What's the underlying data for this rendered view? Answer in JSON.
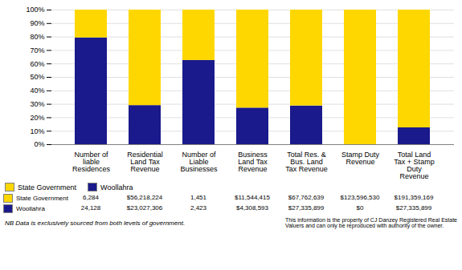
{
  "chart_data": {
    "type": "bar",
    "stacked": true,
    "categories": [
      "Number of\nliable\nResidences",
      "Residential\nLand Tax\nRevenue",
      "Number of\nLiable\nBusinesses",
      "Business\nLand Tax\nRevenue",
      "Total Res. &\nBus. Land\nTax Revenue",
      "Stamp Duty\nRevenue",
      "Total Land\nTax + Stamp\nDuty\nRevenue"
    ],
    "series": [
      {
        "name": "Woollahra",
        "color": "#1a1a8c",
        "values": [
          79.33,
          29.06,
          62.54,
          27.18,
          28.74,
          0.0,
          12.5
        ],
        "table": [
          "24,128",
          "$23,027,306",
          "2,423",
          "$4,308,593",
          "$27,335,899",
          "$0",
          "$27,335,899"
        ]
      },
      {
        "name": "State Government",
        "color": "#ffd700",
        "values": [
          20.67,
          70.94,
          37.46,
          72.82,
          71.26,
          100.0,
          87.5
        ],
        "table": [
          "6,284",
          "$56,218,224",
          "1,451",
          "$11,544,415",
          "$67,762,639",
          "$123,596,530",
          "$191,359,169"
        ]
      }
    ],
    "ylim": [
      0,
      100
    ],
    "yticks": [
      {
        "value": 0,
        "label": "0%"
      },
      {
        "value": 10,
        "label": "10%"
      },
      {
        "value": 20,
        "label": "20%"
      },
      {
        "value": 30,
        "label": "30%"
      },
      {
        "value": 40,
        "label": "40%"
      },
      {
        "value": 50,
        "label": "50%"
      },
      {
        "value": 60,
        "label": "60%"
      },
      {
        "value": 70,
        "label": "70%"
      },
      {
        "value": 80,
        "label": "80%"
      },
      {
        "value": 90,
        "label": "90%"
      },
      {
        "value": 100,
        "label": "100%"
      }
    ],
    "grid": true,
    "legend": "lower left",
    "annotations": [
      "NB Data is exclusively sourced from both levels of government.",
      "This information is the property of CJ Danzey Registered Real Estate\nValuers and can only be reproduced with authority of the owner."
    ]
  }
}
